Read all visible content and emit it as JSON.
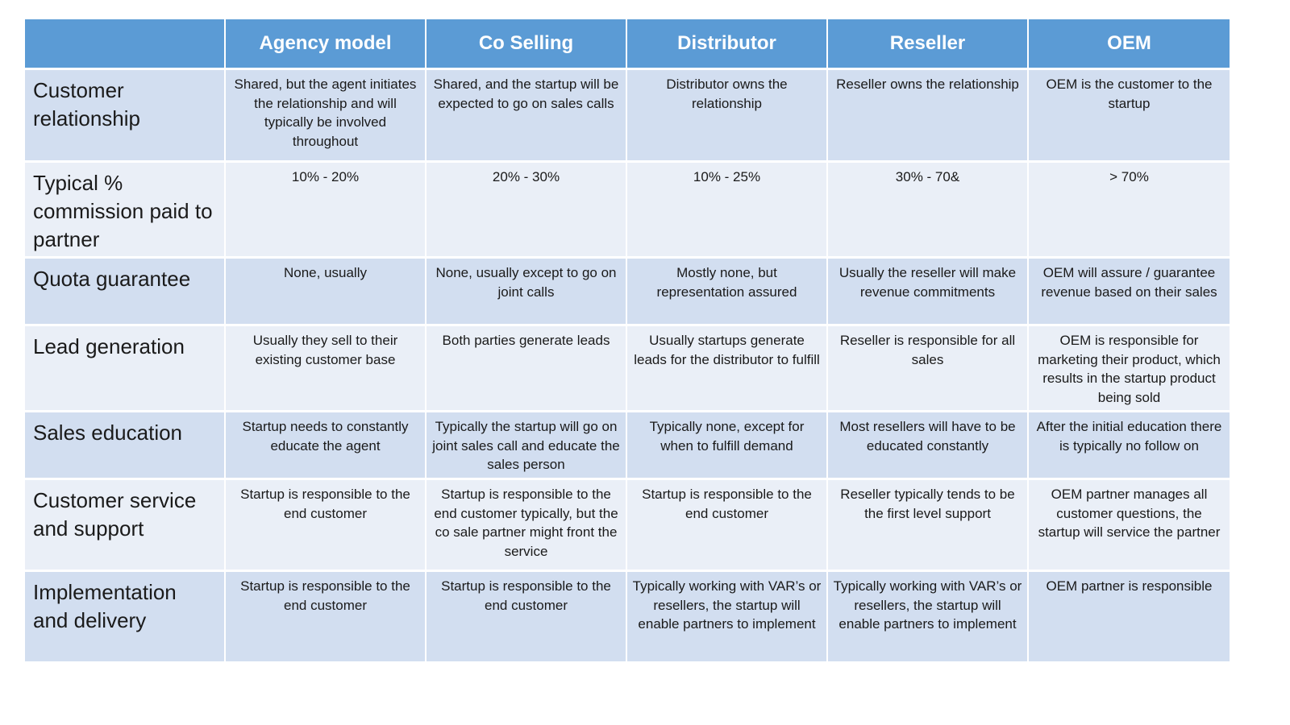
{
  "table": {
    "columns": [
      "",
      "Agency model",
      "Co Selling",
      "Distributor",
      "Reseller",
      "OEM"
    ],
    "rows": [
      {
        "label": "Customer relationship",
        "cells": [
          "Shared, but the agent initiates the relationship and will typically be involved throughout",
          "Shared, and the startup will be expected to go on sales calls",
          "Distributor owns the relationship",
          "Reseller owns the relationship",
          "OEM is the customer to the startup"
        ]
      },
      {
        "label": "Typical % commission paid to partner",
        "cells": [
          "10% - 20%",
          "20% - 30%",
          "10% - 25%",
          "30% - 70&",
          "> 70%"
        ]
      },
      {
        "label": "Quota guarantee",
        "cells": [
          "None, usually",
          "None, usually except to go on joint calls",
          "Mostly none, but representation assured",
          "Usually the reseller will make revenue commitments",
          "OEM will assure / guarantee revenue based on their sales"
        ]
      },
      {
        "label": "Lead generation",
        "cells": [
          "Usually they sell to their existing customer base",
          "Both parties generate leads",
          "Usually startups generate leads for the distributor to fulfill",
          "Reseller is responsible for all sales",
          "OEM is responsible for marketing their product, which results in the startup product being sold"
        ]
      },
      {
        "label": "Sales education",
        "cells": [
          "Startup needs to constantly educate the agent",
          "Typically the startup will go on joint sales call and educate the sales person",
          "Typically none, except for when to fulfill demand",
          "Most resellers will have to be educated constantly",
          "After the initial education there is typically no follow on"
        ]
      },
      {
        "label": "Customer service and support",
        "cells": [
          "Startup is responsible to the end customer",
          "Startup is responsible to the end customer typically, but the co sale partner might front the service",
          "Startup is responsible to the end customer",
          "Reseller typically tends to be the first level support",
          "OEM partner manages all customer questions, the startup will service the partner"
        ]
      },
      {
        "label": "Implementation and delivery",
        "cells": [
          "Startup is responsible to the end customer",
          "Startup is responsible to the end customer",
          "Typically working with VAR’s or resellers, the startup will enable partners to implement",
          "Typically working with VAR’s or resellers, the startup will enable partners to implement",
          "OEM partner is responsible"
        ]
      }
    ]
  }
}
